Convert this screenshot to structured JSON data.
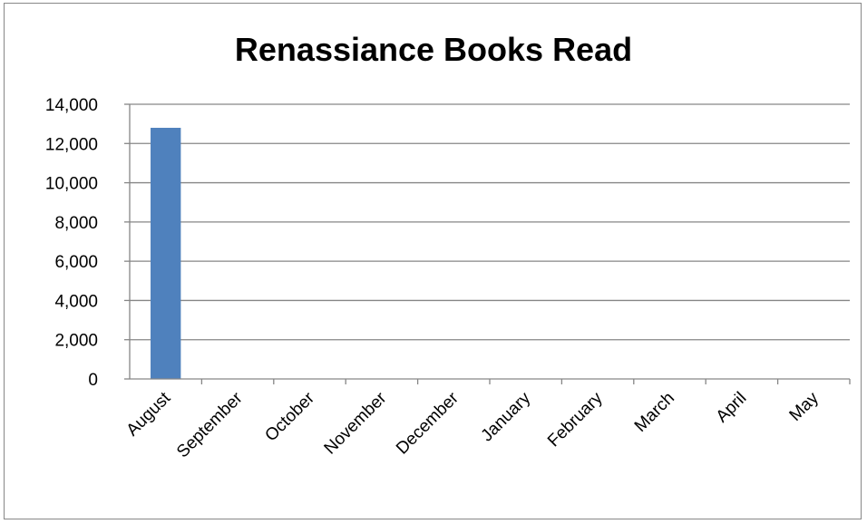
{
  "chart_data": {
    "type": "bar",
    "title": "Renassiance Books Read",
    "xlabel": "",
    "ylabel": "",
    "categories": [
      "August",
      "September",
      "October",
      "November",
      "December",
      "January",
      "February",
      "March",
      "April",
      "May"
    ],
    "values": [
      12800,
      0,
      0,
      0,
      0,
      0,
      0,
      0,
      0,
      0
    ],
    "ylim": [
      0,
      14000
    ],
    "yticks": [
      0,
      2000,
      4000,
      6000,
      8000,
      10000,
      12000,
      14000
    ],
    "ytick_labels": [
      "0",
      "2,000",
      "4,000",
      "6,000",
      "8,000",
      "10,000",
      "12,000",
      "14,000"
    ],
    "grid": true,
    "legend": "none",
    "colors": {
      "bar": "#4f81bd",
      "grid": "#868686",
      "frame": "#878787"
    }
  }
}
